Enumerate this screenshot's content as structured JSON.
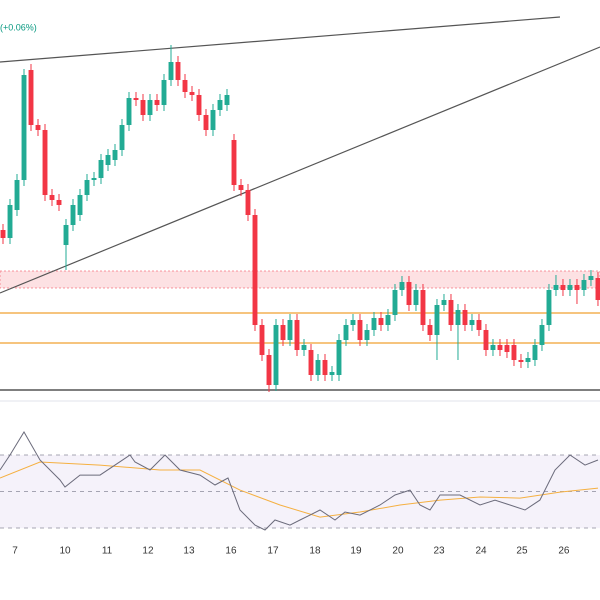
{
  "chart_data": {
    "type": "candlestick",
    "change_label": "(+0.06%)",
    "up_color": "#22ab94",
    "down_color": "#f23645",
    "xlim": [
      -0.43,
      85.29
    ],
    "ylim": [
      0,
      400
    ],
    "xticks": [
      {
        "value": 1.71,
        "label": "7"
      },
      {
        "value": 8.86,
        "label": "10"
      },
      {
        "value": 14.86,
        "label": "11"
      },
      {
        "value": 20.71,
        "label": "12"
      },
      {
        "value": 26.57,
        "label": "13"
      },
      {
        "value": 32.57,
        "label": "16"
      },
      {
        "value": 38.57,
        "label": "17"
      },
      {
        "value": 44.57,
        "label": "18"
      },
      {
        "value": 50.43,
        "label": "19"
      },
      {
        "value": 56.43,
        "label": "20"
      },
      {
        "value": 62.29,
        "label": "23"
      },
      {
        "value": 68.29,
        "label": "24"
      },
      {
        "value": 74.14,
        "label": "25"
      },
      {
        "value": 80.14,
        "label": "26"
      }
    ],
    "open": [
      170,
      162,
      190,
      220,
      330,
      275,
      270,
      205,
      200,
      155,
      175,
      185,
      205,
      220,
      222,
      235,
      240,
      250,
      275,
      302,
      300,
      285,
      300,
      295,
      320,
      338,
      320,
      308,
      305,
      285,
      270,
      290,
      295,
      260,
      215,
      210,
      185,
      75,
      45,
      15,
      75,
      60,
      80,
      50,
      50,
      25,
      40,
      25,
      25,
      60,
      75,
      80,
      60,
      70,
      82,
      75,
      85,
      110,
      118,
      95,
      110,
      75,
      65,
      95,
      100,
      75,
      90,
      75,
      80,
      70,
      50,
      55,
      55,
      55,
      40,
      38,
      40,
      55,
      75,
      110,
      115,
      110,
      115,
      110,
      120,
      122
    ],
    "high": [
      176,
      201,
      226,
      331,
      336,
      281,
      276,
      211,
      206,
      181,
      201,
      211,
      226,
      228,
      246,
      251,
      256,
      281,
      308,
      308,
      306,
      306,
      306,
      326,
      355,
      344,
      326,
      314,
      311,
      291,
      296,
      306,
      311,
      266,
      221,
      216,
      191,
      81,
      51,
      81,
      81,
      86,
      86,
      61,
      56,
      46,
      46,
      34,
      66,
      81,
      86,
      86,
      76,
      88,
      88,
      91,
      116,
      124,
      124,
      116,
      116,
      81,
      101,
      106,
      106,
      96,
      96,
      86,
      86,
      76,
      61,
      61,
      61,
      61,
      46,
      48,
      61,
      81,
      116,
      125,
      121,
      121,
      121,
      126,
      130,
      128
    ],
    "low": [
      156,
      156,
      184,
      214,
      269,
      264,
      199,
      194,
      189,
      130,
      169,
      179,
      199,
      214,
      216,
      229,
      234,
      244,
      269,
      294,
      279,
      279,
      289,
      289,
      314,
      314,
      302,
      299,
      279,
      264,
      264,
      284,
      289,
      209,
      204,
      179,
      69,
      39,
      8,
      9,
      54,
      54,
      44,
      44,
      19,
      19,
      19,
      19,
      19,
      54,
      69,
      54,
      54,
      64,
      69,
      69,
      79,
      104,
      89,
      89,
      69,
      59,
      40,
      89,
      69,
      40,
      69,
      69,
      64,
      44,
      44,
      44,
      42,
      34,
      32,
      32,
      34,
      49,
      69,
      104,
      104,
      104,
      96,
      104,
      114,
      94
    ],
    "close": [
      162,
      195,
      220,
      325,
      275,
      270,
      205,
      200,
      195,
      175,
      195,
      205,
      220,
      222,
      240,
      245,
      250,
      275,
      302,
      300,
      285,
      300,
      295,
      320,
      338,
      320,
      308,
      305,
      285,
      270,
      290,
      300,
      305,
      215,
      210,
      185,
      75,
      45,
      15,
      75,
      60,
      80,
      50,
      55,
      25,
      40,
      25,
      28,
      60,
      75,
      80,
      60,
      70,
      82,
      75,
      85,
      110,
      118,
      95,
      110,
      75,
      65,
      95,
      100,
      75,
      90,
      75,
      80,
      70,
      50,
      55,
      50,
      48,
      40,
      38,
      42,
      55,
      75,
      110,
      115,
      110,
      115,
      110,
      120,
      124,
      100
    ],
    "trendlines": [
      {
        "color": "#555555",
        "x": [
          -0.43,
          79.57
        ],
        "values": [
          338,
          383
        ]
      },
      {
        "color": "#555555",
        "x": [
          -0.43,
          85.29
        ],
        "values": [
          107,
          353
        ]
      }
    ],
    "hlines": [
      {
        "color": "#f0a030",
        "value": 87
      },
      {
        "color": "#f0a030",
        "value": 57
      },
      {
        "color": "#333333",
        "value": 10
      }
    ],
    "zone": {
      "color": "#f23645",
      "range": [
        112,
        129
      ]
    },
    "rsi": {
      "ylim": [
        20.7,
        89.2
      ],
      "levels": [
        70,
        50,
        30
      ],
      "band_color": "#7e57c2",
      "line": {
        "color": "#6b6b7b",
        "x": [
          -0.43,
          1,
          3,
          5.29,
          8.14,
          8.86,
          11,
          13.86,
          18.14,
          18.86,
          21,
          23.14,
          25.29,
          28.14,
          30.29,
          32.14,
          33.86,
          36,
          37.43,
          38.86,
          41,
          42.43,
          43.86,
          45.29,
          47.43,
          48.86,
          51,
          53.86,
          56,
          58.14,
          59.57,
          61,
          62.43,
          65.29,
          68.14,
          70.29,
          72.43,
          74.57,
          76.71,
          78.86,
          81,
          83.14,
          85
        ],
        "values": [
          61.8,
          70,
          82.6,
          67.3,
          56.3,
          52.5,
          59,
          59,
          70,
          66.2,
          61.8,
          70,
          61.8,
          59,
          53.6,
          57.4,
          39.9,
          31.6,
          28.9,
          34.4,
          31.6,
          34.4,
          37.1,
          39.9,
          34.4,
          38.8,
          37.1,
          42.6,
          48.1,
          50.8,
          42.6,
          39.9,
          48.1,
          48.1,
          42.6,
          45.3,
          42.6,
          39.9,
          45.3,
          61.8,
          70,
          64.5,
          67.3
        ]
      },
      "ma": {
        "color": "#f5b041",
        "x": [
          -0.43,
          5.29,
          13.86,
          22.43,
          28.14,
          33.86,
          39.57,
          45.29,
          51,
          56.71,
          62.43,
          68.14,
          73.86,
          79.57,
          85
        ],
        "values": [
          57.4,
          66.2,
          64.5,
          61.8,
          61.8,
          50.8,
          42.6,
          36,
          38.8,
          42.6,
          45.3,
          47,
          46.4,
          49.7,
          51.9
        ]
      }
    }
  }
}
